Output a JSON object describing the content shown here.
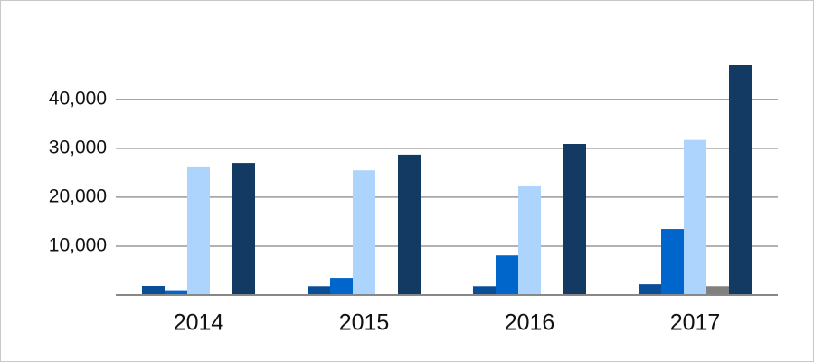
{
  "chart_data": {
    "type": "bar",
    "categories": [
      "2014",
      "2015",
      "2016",
      "2017"
    ],
    "series": [
      {
        "color": "#0b4e98",
        "values": [
          1850,
          1800,
          1800,
          2200
        ]
      },
      {
        "color": "#0066cc",
        "values": [
          1000,
          3500,
          8100,
          13500
        ]
      },
      {
        "color": "#acd4fc",
        "values": [
          26300,
          25500,
          22400,
          31700
        ]
      },
      {
        "color": "#808080",
        "values": [
          null,
          null,
          null,
          1800
        ]
      },
      {
        "color": "#133a63",
        "values": [
          27000,
          28700,
          30900,
          47000
        ]
      }
    ],
    "ylim": [
      0,
      47000
    ],
    "yticks": [
      {
        "value": 10000,
        "label": "10,000"
      },
      {
        "value": 20000,
        "label": "20,000"
      },
      {
        "value": 30000,
        "label": "30,000"
      },
      {
        "value": 40000,
        "label": "40,000"
      }
    ],
    "grid": true
  }
}
